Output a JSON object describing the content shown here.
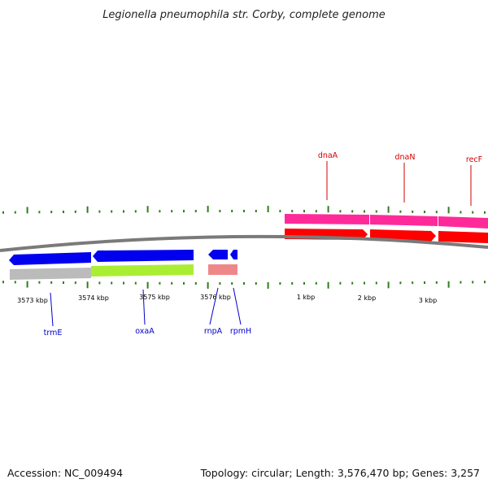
{
  "title": "Legionella pneumophila str. Corby, complete genome",
  "footer": {
    "accession": "Accession: NC_009494",
    "summary": "Topology: circular; Length: 3,576,470 bp; Genes: 3,257"
  },
  "colors": {
    "background": "#ffffff",
    "backbone": "#7a7a7a",
    "tick": "#2e7d1e",
    "label_forward": "#d40000",
    "label_reverse": "#0000cc",
    "gene_forward": "#ff0000",
    "cds_forward": "#ff2a9a",
    "gene_reverse": "#0000ee",
    "cds_reverse": "#aaee33",
    "rna_reverse": "#ee8888",
    "unannotated": "#bbbbbb"
  },
  "tick_labels": [
    {
      "text": "3573 kbp"
    },
    {
      "text": "3574 kbp"
    },
    {
      "text": "3575 kbp"
    },
    {
      "text": "3576 kbp"
    },
    {
      "text": "1 kbp"
    },
    {
      "text": "2 kbp"
    },
    {
      "text": "3 kbp"
    }
  ],
  "genes_forward": [
    {
      "name": "dnaA"
    },
    {
      "name": "dnaN"
    },
    {
      "name": "recF"
    }
  ],
  "genes_reverse": [
    {
      "name": "trmE"
    },
    {
      "name": "oxaA"
    },
    {
      "name": "rnpA"
    },
    {
      "name": "rpmH"
    }
  ]
}
